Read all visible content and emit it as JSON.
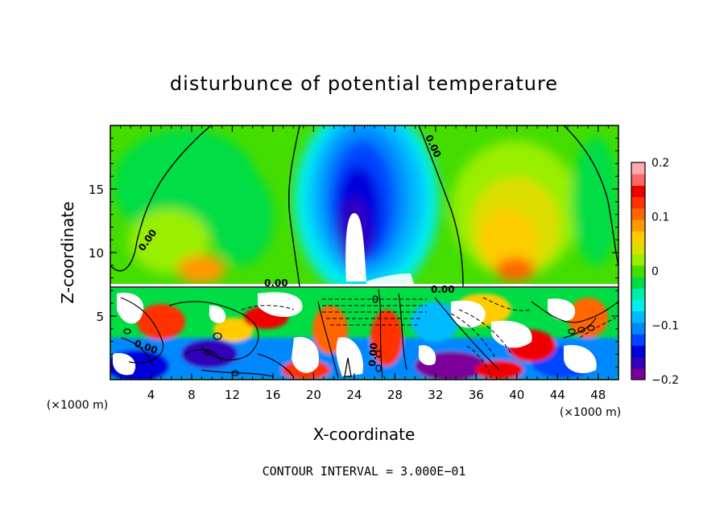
{
  "chart_data": {
    "type": "heatmap",
    "title": "disturbunce of potential temperature",
    "xlabel": "X-coordinate",
    "ylabel": "Z-coordinate",
    "x_unit": "(×1000 m)",
    "x_unit_right": "(×1000 m)",
    "x_ticks": [
      "4",
      "8",
      "12",
      "16",
      "20",
      "24",
      "28",
      "32",
      "36",
      "40",
      "44",
      "48"
    ],
    "x_tick_values": [
      4,
      8,
      12,
      16,
      20,
      24,
      28,
      32,
      36,
      40,
      44,
      48
    ],
    "y_ticks": [
      "5",
      "10",
      "15"
    ],
    "y_tick_values": [
      5,
      10,
      15
    ],
    "xlim": [
      0,
      50
    ],
    "ylim": [
      0,
      20
    ],
    "colorbar": {
      "ticks": [
        "0.2",
        "0.1",
        "0",
        "−0.1",
        "−0.2"
      ],
      "tick_values": [
        0.2,
        0.1,
        0,
        -0.1,
        -0.2
      ],
      "range": [
        -0.2,
        0.2
      ],
      "colors": [
        "#7a0099",
        "#3300bb",
        "#0000dd",
        "#0044ff",
        "#0088ff",
        "#00bbff",
        "#00eeee",
        "#00eeaa",
        "#00dd44",
        "#44dd00",
        "#99ee00",
        "#dddd00",
        "#ffcc00",
        "#ff9900",
        "#ff6600",
        "#ff3300",
        "#ee0000",
        "#ff6666",
        "#ffaaaa"
      ]
    },
    "contour_labels": [
      "0.00",
      "0.00",
      "0.00",
      "0.00",
      "0.00",
      "0.00"
    ],
    "contour_interval": "CONTOUR INTERVAL = 3.000E−01"
  }
}
